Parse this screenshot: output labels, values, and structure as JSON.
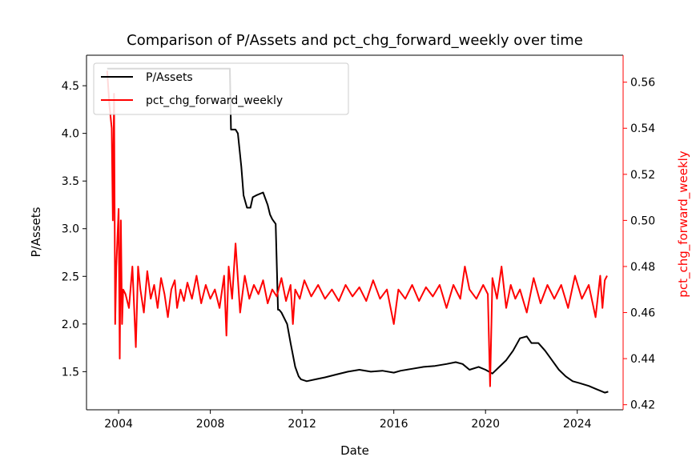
{
  "chart_data": {
    "type": "line",
    "title": "Comparison of P/Assets and pct_chg_forward_weekly over time",
    "xlabel": "Date",
    "ylabel_left": "P/Assets",
    "ylabel_right": "pct_chg_forward_weekly",
    "xlim": [
      2002.6,
      2026.0
    ],
    "ylim_left": [
      1.1,
      4.82
    ],
    "ylim_right": [
      0.4178,
      0.5717
    ],
    "x_ticks": [
      {
        "value": 2004,
        "label": "2004"
      },
      {
        "value": 2008,
        "label": "2008"
      },
      {
        "value": 2012,
        "label": "2012"
      },
      {
        "value": 2016,
        "label": "2016"
      },
      {
        "value": 2020,
        "label": "2020"
      },
      {
        "value": 2024,
        "label": "2024"
      }
    ],
    "y_ticks_left": [
      {
        "value": 1.5,
        "label": "1.5"
      },
      {
        "value": 2.0,
        "label": "2.0"
      },
      {
        "value": 2.5,
        "label": "2.5"
      },
      {
        "value": 3.0,
        "label": "3.0"
      },
      {
        "value": 3.5,
        "label": "3.5"
      },
      {
        "value": 4.0,
        "label": "4.0"
      },
      {
        "value": 4.5,
        "label": "4.5"
      }
    ],
    "y_ticks_right": [
      {
        "value": 0.42,
        "label": "0.42"
      },
      {
        "value": 0.44,
        "label": "0.44"
      },
      {
        "value": 0.46,
        "label": "0.46"
      },
      {
        "value": 0.48,
        "label": "0.48"
      },
      {
        "value": 0.5,
        "label": "0.50"
      },
      {
        "value": 0.52,
        "label": "0.52"
      },
      {
        "value": 0.54,
        "label": "0.54"
      },
      {
        "value": 0.56,
        "label": "0.56"
      }
    ],
    "grid": false,
    "legend_position": "top-left",
    "series": [
      {
        "name": "P/Assets",
        "axis": "left",
        "color": "#000000",
        "x": [
          2003.5,
          2004.0,
          2005.0,
          2006.0,
          2007.0,
          2008.0,
          2008.5,
          2008.85,
          2008.9,
          2009.1,
          2009.2,
          2009.35,
          2009.45,
          2009.6,
          2009.75,
          2009.85,
          2010.0,
          2010.3,
          2010.5,
          2010.6,
          2010.7,
          2010.85,
          2010.95,
          2011.0,
          2011.1,
          2011.35,
          2011.5,
          2011.7,
          2011.85,
          2011.95,
          2012.2,
          2012.6,
          2013.0,
          2013.5,
          2014.0,
          2014.5,
          2015.0,
          2015.5,
          2016.0,
          2016.3,
          2016.8,
          2017.3,
          2017.8,
          2018.3,
          2018.7,
          2019.0,
          2019.3,
          2019.7,
          2020.0,
          2020.3,
          2020.6,
          2020.9,
          2021.2,
          2021.5,
          2021.8,
          2022.0,
          2022.3,
          2022.6,
          2022.9,
          2023.2,
          2023.5,
          2023.8,
          2024.1,
          2024.5,
          2024.8,
          2025.0,
          2025.2,
          2025.35
        ],
        "y": [
          4.68,
          4.68,
          4.68,
          4.68,
          4.68,
          4.68,
          4.68,
          4.68,
          4.04,
          4.04,
          4.0,
          3.65,
          3.35,
          3.22,
          3.22,
          3.33,
          3.35,
          3.38,
          3.25,
          3.15,
          3.1,
          3.05,
          2.15,
          2.15,
          2.12,
          2.0,
          1.8,
          1.55,
          1.45,
          1.42,
          1.4,
          1.42,
          1.44,
          1.47,
          1.5,
          1.52,
          1.5,
          1.51,
          1.49,
          1.51,
          1.53,
          1.55,
          1.56,
          1.58,
          1.6,
          1.58,
          1.52,
          1.55,
          1.52,
          1.48,
          1.55,
          1.62,
          1.72,
          1.85,
          1.87,
          1.8,
          1.8,
          1.72,
          1.62,
          1.52,
          1.45,
          1.4,
          1.38,
          1.35,
          1.32,
          1.3,
          1.28,
          1.29
        ]
      },
      {
        "name": "pct_chg_forward_weekly",
        "axis": "right",
        "color": "#ff0000",
        "x": [
          2003.5,
          2003.6,
          2003.7,
          2003.75,
          2003.8,
          2003.85,
          2003.9,
          2004.0,
          2004.05,
          2004.1,
          2004.15,
          2004.2,
          2004.3,
          2004.45,
          2004.6,
          2004.75,
          2004.85,
          2004.95,
          2005.1,
          2005.25,
          2005.4,
          2005.55,
          2005.7,
          2005.85,
          2006.0,
          2006.15,
          2006.3,
          2006.45,
          2006.55,
          2006.7,
          2006.85,
          2007.0,
          2007.2,
          2007.4,
          2007.6,
          2007.8,
          2008.0,
          2008.2,
          2008.4,
          2008.6,
          2008.7,
          2008.8,
          2008.95,
          2009.1,
          2009.3,
          2009.5,
          2009.7,
          2009.9,
          2010.1,
          2010.3,
          2010.5,
          2010.7,
          2010.9,
          2011.1,
          2011.3,
          2011.5,
          2011.6,
          2011.7,
          2011.9,
          2012.1,
          2012.4,
          2012.7,
          2013.0,
          2013.3,
          2013.6,
          2013.9,
          2014.2,
          2014.5,
          2014.8,
          2015.1,
          2015.4,
          2015.7,
          2016.0,
          2016.2,
          2016.5,
          2016.8,
          2017.1,
          2017.4,
          2017.7,
          2018.0,
          2018.3,
          2018.6,
          2018.9,
          2019.1,
          2019.3,
          2019.6,
          2019.9,
          2020.1,
          2020.2,
          2020.3,
          2020.5,
          2020.7,
          2020.9,
          2021.1,
          2021.3,
          2021.5,
          2021.8,
          2022.1,
          2022.4,
          2022.7,
          2023.0,
          2023.3,
          2023.6,
          2023.9,
          2024.2,
          2024.5,
          2024.8,
          2025.0,
          2025.1,
          2025.2,
          2025.3
        ],
        "y": [
          0.565,
          0.55,
          0.54,
          0.5,
          0.555,
          0.455,
          0.48,
          0.505,
          0.44,
          0.5,
          0.455,
          0.47,
          0.468,
          0.462,
          0.48,
          0.445,
          0.48,
          0.47,
          0.46,
          0.478,
          0.466,
          0.472,
          0.462,
          0.475,
          0.468,
          0.458,
          0.47,
          0.474,
          0.462,
          0.47,
          0.465,
          0.473,
          0.466,
          0.476,
          0.464,
          0.472,
          0.466,
          0.47,
          0.462,
          0.476,
          0.45,
          0.48,
          0.466,
          0.49,
          0.46,
          0.476,
          0.466,
          0.472,
          0.468,
          0.474,
          0.464,
          0.47,
          0.467,
          0.475,
          0.465,
          0.472,
          0.455,
          0.47,
          0.466,
          0.474,
          0.467,
          0.472,
          0.466,
          0.47,
          0.465,
          0.472,
          0.467,
          0.471,
          0.465,
          0.474,
          0.466,
          0.47,
          0.455,
          0.47,
          0.466,
          0.472,
          0.465,
          0.471,
          0.467,
          0.472,
          0.462,
          0.472,
          0.466,
          0.48,
          0.47,
          0.466,
          0.472,
          0.468,
          0.428,
          0.475,
          0.466,
          0.48,
          0.462,
          0.472,
          0.466,
          0.47,
          0.46,
          0.475,
          0.464,
          0.472,
          0.466,
          0.472,
          0.462,
          0.476,
          0.466,
          0.472,
          0.458,
          0.476,
          0.462,
          0.474,
          0.476
        ]
      }
    ]
  }
}
